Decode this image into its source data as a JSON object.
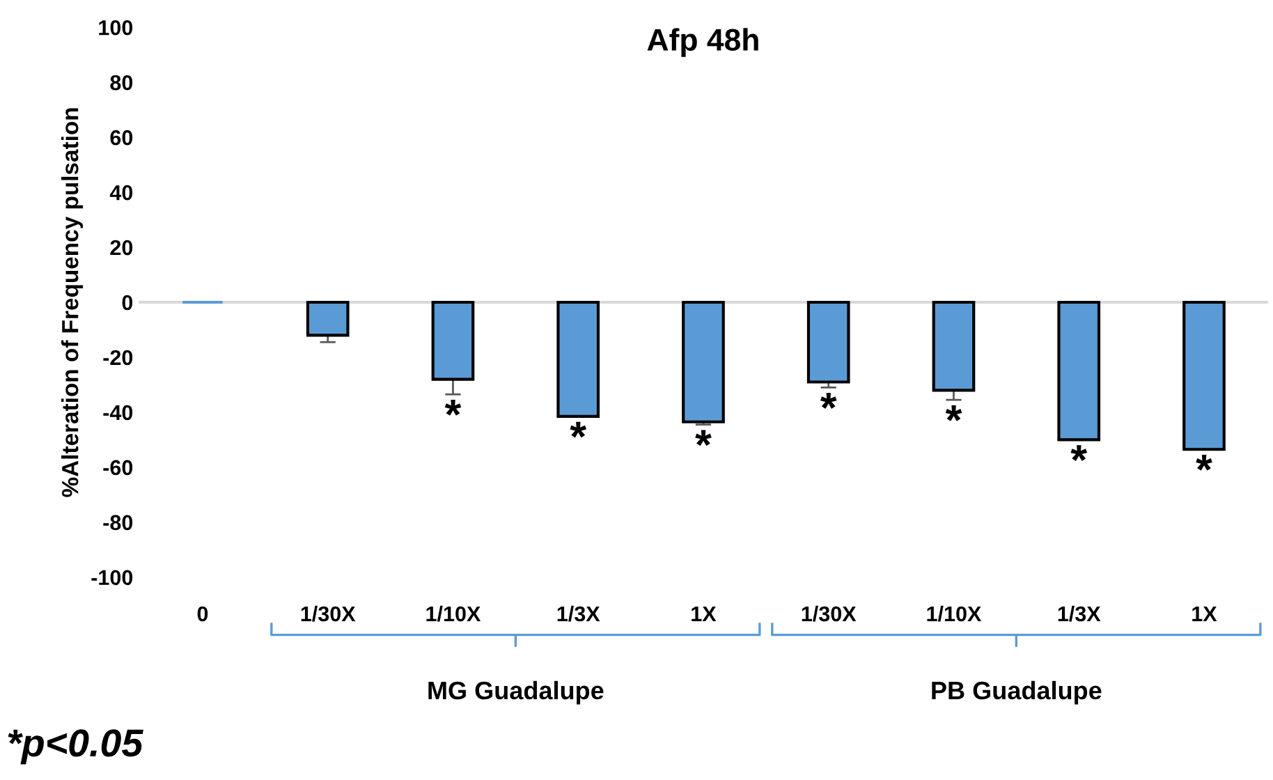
{
  "chart_data": {
    "type": "bar",
    "title": "Afp 48h",
    "ylabel": "%Alteration of Frequency pulsation",
    "categories": [
      "0",
      "1/30X",
      "1/10X",
      "1/3X",
      "1X",
      "1/30X",
      "1/10X",
      "1/3X",
      "1X"
    ],
    "values": [
      0,
      -12,
      -28,
      -41.5,
      -43.5,
      -29,
      -32,
      -50,
      -53.5
    ],
    "errors": [
      null,
      2.5,
      5.5,
      null,
      1,
      2,
      3.5,
      null,
      null
    ],
    "value_labels": [
      null,
      null,
      "*",
      "*",
      "*",
      "*",
      "*",
      "*",
      "*"
    ],
    "color": "#5b9bd5",
    "ylim": [
      -100,
      100
    ],
    "yticks": [
      -100,
      -80,
      -60,
      -40,
      -20,
      0,
      20,
      40,
      60,
      80,
      100
    ],
    "annotations": [
      "*p<0.05",
      "MG Guadalupe",
      "PB Guadalupe"
    ]
  }
}
